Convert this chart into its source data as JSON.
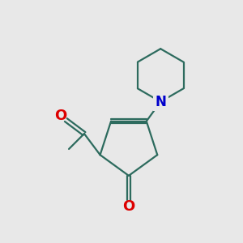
{
  "background_color": "#e8e8e8",
  "bond_color": "#2d6b5e",
  "oxygen_color": "#dd0000",
  "nitrogen_color": "#0000cc",
  "line_width": 1.6,
  "font_size_atom": 12,
  "fig_size": [
    3.0,
    3.0
  ],
  "dpi": 100,
  "xlim": [
    0,
    10
  ],
  "ylim": [
    0,
    10
  ]
}
